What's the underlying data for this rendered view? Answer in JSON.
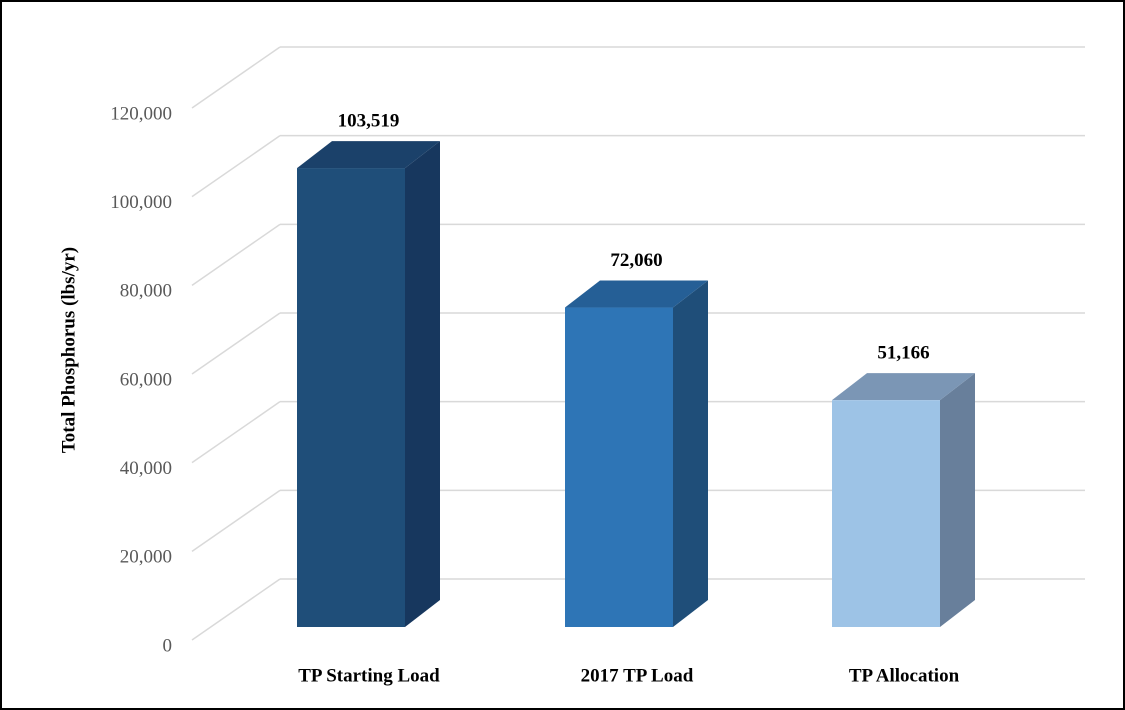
{
  "chart_data": {
    "type": "bar3d",
    "y_label": "Total Phosphorus (lbs/yr)",
    "categories": [
      "TP Starting Load",
      "2017 TP Load",
      "TP Allocation"
    ],
    "values": [
      103519,
      72060,
      51166
    ],
    "value_labels": [
      "103,519",
      "72,060",
      "51,166"
    ],
    "colors": [
      {
        "front": "#1f4e79",
        "side": "#17375e",
        "top": "#1b416a"
      },
      {
        "front": "#2e75b6",
        "side": "#1f4e79",
        "top": "#255f96"
      },
      {
        "front": "#9dc3e6",
        "side": "#687f9b",
        "top": "#7b96b5"
      }
    ],
    "ylim": [
      0,
      120000
    ],
    "yticks": [
      0,
      {
        "value": 20000,
        "label": "20,000"
      },
      {
        "value": 40000,
        "label": "40,000"
      },
      {
        "value": 60000,
        "label": "60,000"
      },
      {
        "value": 80000,
        "label": "80,000"
      },
      {
        "value": 100000,
        "label": "100,000"
      },
      {
        "value": 120000,
        "label": "120,000"
      }
    ],
    "grid": true
  }
}
